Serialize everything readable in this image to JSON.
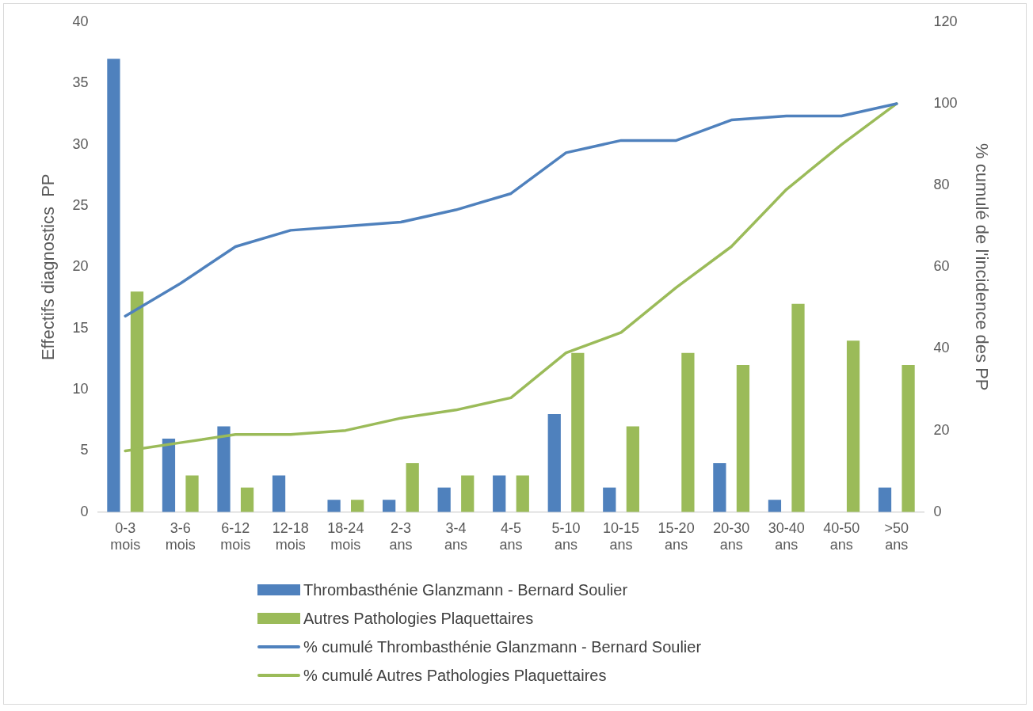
{
  "chart_data": {
    "type": "bar",
    "ylabel": "Effectifs diagnostics  PP",
    "y2label": "% cumulé de l'incidence des PP",
    "categories": [
      "0-3 mois",
      "3-6 mois",
      "6-12 mois",
      "12-18 mois",
      "18-24 mois",
      "2-3 ans",
      "3-4 ans",
      "4-5 ans",
      "5-10 ans",
      "10-15 ans",
      "15-20 ans",
      "20-30 ans",
      "30-40 ans",
      "40-50 ans",
      ">50 ans"
    ],
    "series": [
      {
        "name": "Thrombasthénie Glanzmann - Bernard Soulier",
        "color": "#4f81bd",
        "values": [
          37,
          6,
          7,
          3,
          1,
          1,
          2,
          3,
          8,
          2,
          0,
          4,
          1,
          0,
          2
        ]
      },
      {
        "name": "Autres Pathologies Plaquettaires",
        "color": "#9bbb59",
        "values": [
          18,
          3,
          2,
          0,
          1,
          4,
          3,
          3,
          13,
          7,
          13,
          12,
          17,
          14,
          12
        ]
      },
      {
        "name": "% cumulé Thrombasthénie Glanzmann - Bernard Soulier",
        "type": "line",
        "axis": "y2",
        "color": "#4f81bd",
        "values": [
          48,
          56,
          65,
          69,
          70,
          71,
          74,
          78,
          88,
          91,
          91,
          96,
          97,
          97,
          100
        ]
      },
      {
        "name": "% cumulé Autres Pathologies Plaquettaires",
        "type": "line",
        "axis": "y2",
        "color": "#9bbb59",
        "values": [
          15,
          17,
          19,
          19,
          20,
          23,
          25,
          28,
          39,
          44,
          55,
          65,
          79,
          90,
          100
        ]
      }
    ],
    "ylim": [
      0,
      40
    ],
    "yticks": [
      0,
      5,
      10,
      15,
      20,
      25,
      30,
      35,
      40
    ],
    "y2lim": [
      0,
      120
    ],
    "y2ticks": [
      0,
      20,
      40,
      60,
      80,
      100,
      120
    ],
    "grid": false,
    "legend": "bottom",
    "marker": "none",
    "line_style": "solid"
  }
}
